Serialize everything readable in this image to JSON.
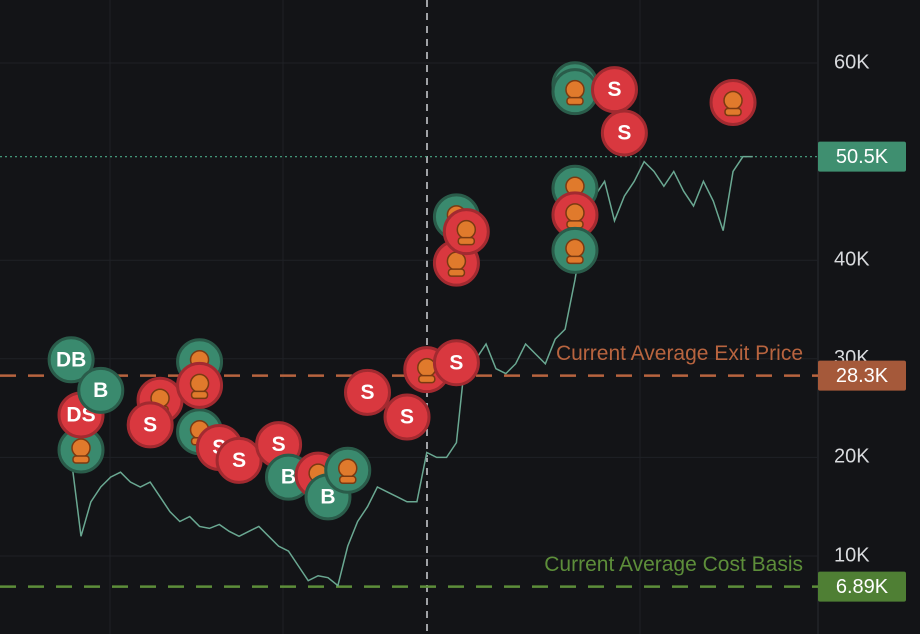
{
  "chart_data": {
    "type": "line",
    "color": "#6aa892",
    "x": [
      0,
      1,
      2,
      3,
      4,
      5,
      6,
      7,
      8,
      9,
      10,
      11,
      12,
      13,
      14,
      15,
      16,
      17,
      18,
      19,
      20,
      21,
      22,
      23,
      24,
      25,
      26,
      27,
      28,
      29,
      30,
      31,
      32,
      33,
      34,
      35,
      36,
      37,
      38,
      39,
      40,
      41,
      42,
      43,
      44,
      45,
      46,
      47,
      48,
      49,
      50,
      51,
      52,
      53,
      54,
      55,
      56,
      57,
      58,
      59,
      60,
      61,
      62,
      63,
      64,
      65,
      66,
      67,
      68,
      69
    ],
    "values": [
      20000,
      12000,
      15500,
      17000,
      18000,
      18500,
      17500,
      17000,
      17500,
      16000,
      14500,
      13500,
      14000,
      13000,
      12800,
      13200,
      12500,
      12000,
      12500,
      13000,
      12000,
      11000,
      10500,
      9000,
      7500,
      8000,
      7800,
      7000,
      11000,
      13500,
      15000,
      17000,
      16500,
      16000,
      15500,
      15500,
      20500,
      20000,
      20000,
      21500,
      31000,
      30000,
      31500,
      29000,
      28500,
      29500,
      31500,
      30500,
      29500,
      32000,
      33000,
      38000,
      44000,
      46500,
      48000,
      44000,
      46500,
      48000,
      50000,
      49000,
      47500,
      49000,
      47000,
      45500,
      48000,
      46000,
      43000,
      49000,
      50500,
      50500
    ],
    "xlim": [
      -7.2,
      75.6
    ],
    "ylim": [
      2090,
      66390
    ],
    "yticks": [
      {
        "value": 10000,
        "label": "10K"
      },
      {
        "value": 20000,
        "label": "20K"
      },
      {
        "value": 30000,
        "label": "30K"
      },
      {
        "value": 40000,
        "label": "40K"
      },
      {
        "value": 60000,
        "label": "60K"
      }
    ],
    "grid": true,
    "reference_lines": [
      {
        "value": 50500,
        "label": "50.5K",
        "color": "#4aa887",
        "badge": "#3f8f70",
        "style": "dotted"
      },
      {
        "value": 28300,
        "label": "28.3K",
        "name": "Current Average Exit Price",
        "color": "#b8643f",
        "badge": "#a5593a",
        "style": "dashed"
      },
      {
        "value": 6890,
        "label": "6.89K",
        "name": "Current Average Cost Basis",
        "color": "#5d8e3a",
        "badge": "#4f7f34",
        "style": "dashed"
      }
    ],
    "buy_color": "#3a8a6e",
    "sell_color": "#d9383f",
    "markers": [
      {
        "x": 0,
        "value": 29900,
        "label": "DB",
        "side": "buy"
      },
      {
        "x": 1,
        "value": 20750,
        "side": "buy"
      },
      {
        "x": 1,
        "value": 24300,
        "label": "DS",
        "side": "sell"
      },
      {
        "x": 3,
        "value": 26800,
        "label": "B",
        "side": "buy"
      },
      {
        "x": 9,
        "value": 25800,
        "side": "sell"
      },
      {
        "x": 8,
        "value": 23300,
        "label": "S",
        "side": "sell"
      },
      {
        "x": 13,
        "value": 29700,
        "side": "buy"
      },
      {
        "x": 13,
        "value": 22600,
        "side": "buy"
      },
      {
        "x": 13,
        "value": 27300,
        "side": "sell"
      },
      {
        "x": 15,
        "value": 21000,
        "label": "S",
        "side": "sell"
      },
      {
        "x": 17,
        "value": 19700,
        "label": "S",
        "side": "sell"
      },
      {
        "x": 21,
        "value": 21300,
        "label": "S",
        "side": "sell"
      },
      {
        "x": 22,
        "value": 18000,
        "label": "B",
        "side": "buy"
      },
      {
        "x": 25,
        "value": 18200,
        "side": "sell"
      },
      {
        "x": 26,
        "value": 16000,
        "label": "B",
        "side": "buy"
      },
      {
        "x": 28,
        "value": 18700,
        "side": "buy"
      },
      {
        "x": 30,
        "value": 26600,
        "label": "S",
        "side": "sell"
      },
      {
        "x": 34,
        "value": 24100,
        "label": "S",
        "side": "sell"
      },
      {
        "x": 36,
        "value": 28900,
        "side": "sell"
      },
      {
        "x": 39,
        "value": 29600,
        "label": "S",
        "side": "sell"
      },
      {
        "x": 39,
        "value": 44400,
        "side": "buy"
      },
      {
        "x": 39,
        "value": 39700,
        "side": "sell"
      },
      {
        "x": 40,
        "value": 42900,
        "side": "sell"
      },
      {
        "x": 51,
        "value": 57800,
        "side": "buy"
      },
      {
        "x": 51,
        "value": 57100,
        "side": "buy"
      },
      {
        "x": 51,
        "value": 47300,
        "side": "buy"
      },
      {
        "x": 51,
        "value": 44600,
        "side": "sell"
      },
      {
        "x": 51,
        "value": 41000,
        "side": "buy"
      },
      {
        "x": 55,
        "value": 57300,
        "label": "S",
        "side": "sell"
      },
      {
        "x": 56,
        "value": 52900,
        "label": "S",
        "side": "sell"
      },
      {
        "x": 67,
        "value": 56000,
        "side": "sell"
      }
    ]
  }
}
